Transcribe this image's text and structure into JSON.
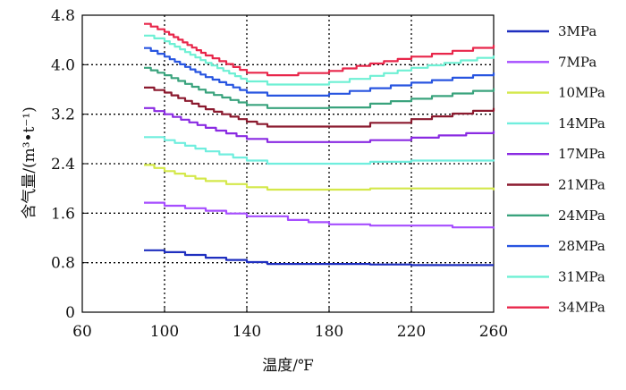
{
  "chart_data": {
    "type": "line",
    "xlabel": "温度/℉",
    "ylabel": "含气量/(m³•t⁻¹)",
    "xlim": [
      60,
      260
    ],
    "ylim": [
      0,
      4.8
    ],
    "xticks": [
      60,
      100,
      140,
      180,
      220,
      260
    ],
    "yticks": [
      0,
      0.8,
      1.6,
      2.4,
      3.2,
      4.0,
      4.8
    ],
    "x_tick_labels": [
      "60",
      "100",
      "140",
      "180",
      "220",
      "260"
    ],
    "y_tick_labels": [
      "0",
      "0.8",
      "1.6",
      "2.4",
      "3.2",
      "4.0",
      "4.8"
    ],
    "grid": "dotted at x = 100, 140, 180, 220 and y = 0.8, 1.6, 2.4, 3.2, 4.0",
    "legend_position": "right",
    "series": [
      {
        "name": "3MPa",
        "color": "#1f2fbf",
        "x": [
          90,
          100,
          120,
          140,
          150,
          180,
          200,
          220,
          260
        ],
        "y": [
          1.0,
          0.97,
          0.88,
          0.81,
          0.78,
          0.78,
          0.77,
          0.76,
          0.76
        ]
      },
      {
        "name": "7MPa",
        "color": "#a64dff",
        "x": [
          90,
          100,
          120,
          140,
          160,
          180,
          200,
          240,
          260
        ],
        "y": [
          1.77,
          1.72,
          1.64,
          1.55,
          1.49,
          1.42,
          1.4,
          1.37,
          1.35
        ]
      },
      {
        "name": "10MPa",
        "color": "#d4e84a",
        "x": [
          90,
          100,
          120,
          140,
          150,
          180,
          200,
          220,
          250,
          260
        ],
        "y": [
          2.38,
          2.28,
          2.12,
          2.02,
          1.98,
          1.98,
          2.0,
          2.0,
          2.0,
          1.97
        ]
      },
      {
        "name": "14MPa",
        "color": "#70eede",
        "x": [
          90,
          100,
          120,
          140,
          150,
          180,
          200,
          220,
          260
        ],
        "y": [
          2.83,
          2.78,
          2.6,
          2.45,
          2.4,
          2.4,
          2.43,
          2.45,
          2.47
        ]
      },
      {
        "name": "17MPa",
        "color": "#8a2be2",
        "x": [
          90,
          100,
          120,
          140,
          150,
          180,
          200,
          220,
          260
        ],
        "y": [
          3.3,
          3.2,
          2.98,
          2.8,
          2.75,
          2.75,
          2.78,
          2.82,
          2.93
        ]
      },
      {
        "name": "21MPa",
        "color": "#8b1a2f",
        "x": [
          90,
          100,
          120,
          140,
          150,
          180,
          200,
          220,
          260
        ],
        "y": [
          3.63,
          3.55,
          3.28,
          3.08,
          3.0,
          3.0,
          3.06,
          3.12,
          3.3
        ]
      },
      {
        "name": "24MPa",
        "color": "#3aa37d",
        "x": [
          90,
          100,
          120,
          140,
          150,
          180,
          200,
          220,
          260
        ],
        "y": [
          3.95,
          3.83,
          3.55,
          3.35,
          3.3,
          3.31,
          3.37,
          3.45,
          3.62
        ]
      },
      {
        "name": "28MPa",
        "color": "#2855e0",
        "x": [
          90,
          100,
          120,
          140,
          150,
          180,
          200,
          220,
          260
        ],
        "y": [
          4.27,
          4.13,
          3.8,
          3.55,
          3.5,
          3.53,
          3.62,
          3.71,
          3.87
        ]
      },
      {
        "name": "31MPa",
        "color": "#6ef0d4",
        "x": [
          90,
          100,
          120,
          140,
          150,
          180,
          200,
          220,
          260
        ],
        "y": [
          4.47,
          4.38,
          4.03,
          3.73,
          3.68,
          3.72,
          3.82,
          3.95,
          4.15
        ]
      },
      {
        "name": "34MPa",
        "color": "#e8264a",
        "x": [
          90,
          100,
          120,
          140,
          150,
          180,
          200,
          220,
          260
        ],
        "y": [
          4.66,
          4.53,
          4.15,
          3.87,
          3.83,
          3.9,
          4.02,
          4.13,
          4.32
        ]
      }
    ]
  }
}
